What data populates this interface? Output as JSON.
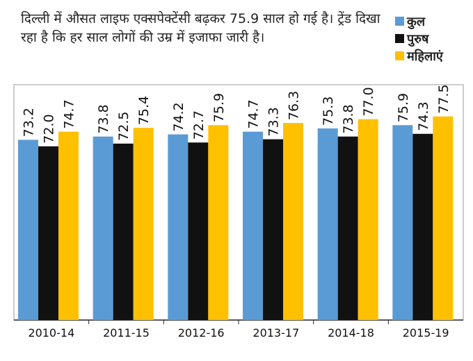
{
  "headline": "दिल्ली में औसत लाइफ एक्सपेक्टेंसी बढ़कर 75.9 साल हो गई है। ट्रेंड दिखा रहा है कि हर साल लोगों की उम्र में इजाफा जारी है।",
  "chart_data": {
    "type": "bar",
    "categories": [
      "2010-14",
      "2011-15",
      "2012-16",
      "2013-17",
      "2014-18",
      "2015-19"
    ],
    "series": [
      {
        "name": "कुल",
        "color": "#5b9bd5",
        "values": [
          73.2,
          73.8,
          74.2,
          74.7,
          75.3,
          75.9
        ],
        "labels": [
          "73.2",
          "73.8",
          "74.2",
          "74.7",
          "75.3",
          "75.9"
        ]
      },
      {
        "name": "पुरुष",
        "color": "#111111",
        "values": [
          72.0,
          72.5,
          72.7,
          73.3,
          73.8,
          74.3
        ],
        "labels": [
          "72.0",
          "72.5",
          "72.7",
          "73.3",
          "73.8",
          "74.3"
        ]
      },
      {
        "name": "महिलाएं",
        "color": "#ffc000",
        "values": [
          74.7,
          75.4,
          75.9,
          76.3,
          77.0,
          77.5
        ],
        "labels": [
          "74.7",
          "75.4",
          "75.9",
          "76.3",
          "77.0",
          "77.5"
        ]
      }
    ],
    "legend_position": "top-right",
    "grid": false,
    "data_labels": "vertical, above bars"
  }
}
